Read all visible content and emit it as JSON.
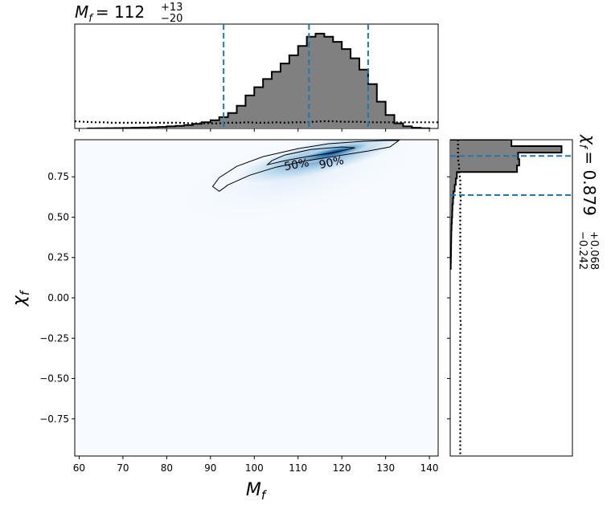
{
  "chart_data": [
    {
      "type": "heatmap",
      "xlabel_main": "M",
      "xlabel_sub": "f",
      "ylabel_main": "χ",
      "ylabel_sub": "f",
      "xlim": [
        59,
        142
      ],
      "ylim": [
        -0.98,
        0.98
      ],
      "xticks": [
        60,
        70,
        80,
        90,
        100,
        110,
        120,
        130,
        140
      ],
      "yticks": [
        0.75,
        0.5,
        0.25,
        0.0,
        -0.25,
        -0.5,
        -0.75
      ],
      "ytick_labels": [
        "0.75",
        "0.50",
        "0.25",
        "0.00",
        "−0.25",
        "−0.50",
        "−0.75"
      ],
      "contour_labels": [
        "50%",
        "90%"
      ],
      "colormap": [
        "#f7fbff",
        "#c6dbef",
        "#6baed6",
        "#2171b5",
        "#08306b"
      ],
      "density_peak": {
        "x": 118,
        "y": 0.9
      },
      "contour_50": [
        [
          103,
          0.825
        ],
        [
          107,
          0.85
        ],
        [
          112,
          0.875
        ],
        [
          118,
          0.9
        ],
        [
          123,
          0.93
        ],
        [
          120,
          0.935
        ],
        [
          113,
          0.92
        ],
        [
          107,
          0.885
        ],
        [
          104,
          0.85
        ],
        [
          103,
          0.825
        ]
      ],
      "contour_90": [
        [
          92,
          0.66
        ],
        [
          94,
          0.7
        ],
        [
          99,
          0.76
        ],
        [
          105,
          0.81
        ],
        [
          112,
          0.85
        ],
        [
          119,
          0.88
        ],
        [
          126,
          0.91
        ],
        [
          131,
          0.935
        ],
        [
          133,
          0.975
        ],
        [
          130,
          0.975
        ],
        [
          125,
          0.97
        ],
        [
          117,
          0.955
        ],
        [
          110,
          0.925
        ],
        [
          102,
          0.875
        ],
        [
          96,
          0.815
        ],
        [
          92,
          0.745
        ],
        [
          90.5,
          0.69
        ],
        [
          92,
          0.66
        ]
      ]
    },
    {
      "type": "bar",
      "axis": "x",
      "title_main": "M",
      "title_sub": "f",
      "title_value": "= 112",
      "title_sup": "+13",
      "title_subscript": "−20",
      "xlim": [
        59,
        142
      ],
      "bins": [
        63,
        65,
        67,
        69,
        71,
        73,
        75,
        77,
        79,
        81,
        83,
        85,
        87,
        89,
        91,
        93,
        95,
        97,
        99,
        101,
        103,
        105,
        107,
        109,
        111,
        113,
        115,
        117,
        119,
        121,
        123,
        125,
        127,
        129,
        131,
        133,
        135,
        137,
        139
      ],
      "values": [
        0.1,
        0.2,
        0.3,
        0.4,
        0.5,
        0.7,
        0.9,
        1.2,
        1.5,
        2,
        2.5,
        3.3,
        4.5,
        6,
        8,
        11,
        15,
        22,
        32,
        40,
        48,
        55,
        63,
        71,
        80,
        89,
        92,
        89,
        84,
        77,
        68,
        57,
        43,
        26,
        13,
        5,
        2,
        0.7,
        0.2
      ],
      "ymax": 95,
      "quantiles": [
        93,
        112.5,
        126
      ],
      "prior": [
        7,
        6.5,
        6,
        6,
        5.5,
        5.5,
        5.5,
        5.5,
        5.5,
        5.5,
        5.5,
        5.5,
        5,
        5,
        5,
        5,
        5.5,
        5.5,
        6,
        5.5,
        5.5,
        6,
        5.5,
        6,
        6,
        6.5,
        7,
        7,
        6.5,
        6.5,
        6.5,
        6,
        6,
        6,
        6,
        6,
        6,
        6,
        6
      ]
    },
    {
      "type": "bar",
      "axis": "y",
      "title_main": "χ",
      "title_sub": "f",
      "title_value": "= 0.879",
      "title_sup": "+0.068",
      "title_subscript": "−0.242",
      "ylim": [
        -0.98,
        0.98
      ],
      "bins": [
        0.96,
        0.92,
        0.88,
        0.84,
        0.8,
        0.76,
        0.72,
        0.68,
        0.64,
        0.6,
        0.56,
        0.52,
        0.48,
        0.44,
        0.4,
        0.36,
        0.32,
        0.28,
        0.24,
        0.2
      ],
      "values": [
        55,
        100,
        61,
        62,
        60,
        6,
        5,
        4,
        3,
        2.5,
        2,
        1.8,
        1.5,
        1.2,
        1,
        0.9,
        0.8,
        0.7,
        0.6,
        0.5
      ],
      "xmax": 104,
      "quantiles": [
        0.879,
        0.637
      ],
      "prior": [
        7,
        7,
        7,
        7,
        8,
        8,
        9,
        9,
        9,
        9.5,
        9,
        9,
        9,
        9,
        9,
        9,
        9,
        9,
        9,
        9,
        9,
        9,
        9,
        9,
        9,
        9,
        9,
        9,
        9.5,
        9,
        9,
        9,
        9,
        9,
        9,
        9,
        9,
        9,
        9,
        9,
        9,
        9,
        9,
        9,
        9,
        9,
        9,
        9,
        9
      ]
    }
  ]
}
